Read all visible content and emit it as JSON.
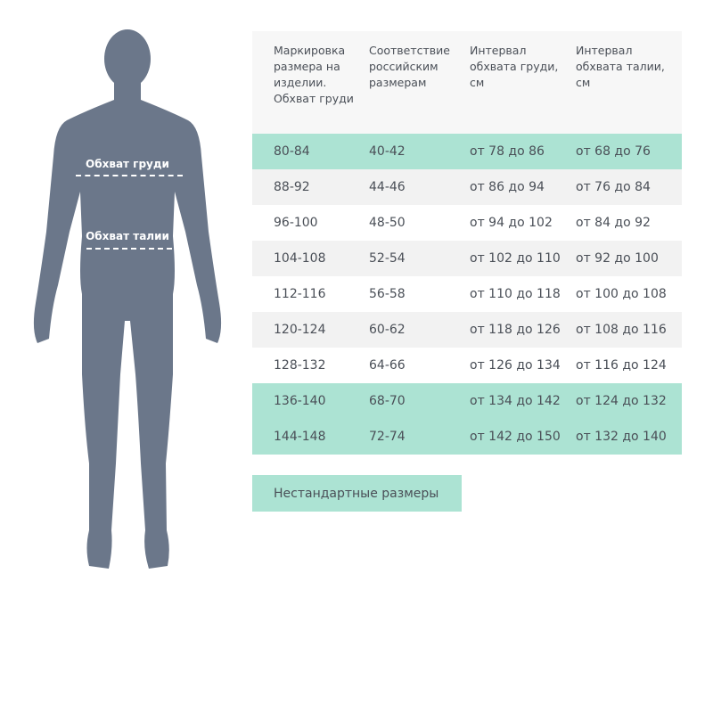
{
  "figure": {
    "chest_label": "Обхват груди",
    "waist_label": "Обхват талии",
    "color": "#6b778a"
  },
  "table": {
    "headers": [
      "Маркировка размера на изделии. Обхват груди",
      "Соответствие российским размерам",
      "Интервал обхвата груди, см",
      "Интервал обхвата талии, см"
    ],
    "rows": [
      {
        "cells": [
          "80-84",
          "40-42",
          "от 78 до 86",
          "от 68 до 76"
        ],
        "highlight": true
      },
      {
        "cells": [
          "88-92",
          "44-46",
          "от 86 до 94",
          "от 76 до 84"
        ],
        "highlight": false
      },
      {
        "cells": [
          "96-100",
          "48-50",
          "от 94 до 102",
          "от 84 до 92"
        ],
        "highlight": false
      },
      {
        "cells": [
          "104-108",
          "52-54",
          "от 102 до 110",
          "от 92 до 100"
        ],
        "highlight": false
      },
      {
        "cells": [
          "112-116",
          "56-58",
          "от 110 до 118",
          "от 100 до 108"
        ],
        "highlight": false
      },
      {
        "cells": [
          "120-124",
          "60-62",
          "от 118 до 126",
          "от 108 до 116"
        ],
        "highlight": false
      },
      {
        "cells": [
          "128-132",
          "64-66",
          "от 126 до 134",
          "от 116 до 124"
        ],
        "highlight": false
      },
      {
        "cells": [
          "136-140",
          "68-70",
          "от 134 до 142",
          "от 124 до 132"
        ],
        "highlight": true
      },
      {
        "cells": [
          "144-148",
          "72-74",
          "от 142 до 150",
          "от 132 до 140"
        ],
        "highlight": true
      }
    ],
    "highlight_color": "#ace3d3"
  },
  "nonstandard_button": "Нестандартные размеры"
}
